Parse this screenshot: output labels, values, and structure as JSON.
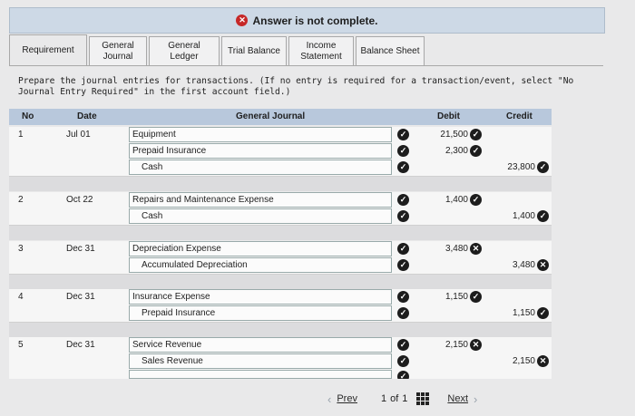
{
  "banner": {
    "text": "Answer is not complete."
  },
  "tabs": [
    {
      "label": "Requirement",
      "active": true
    },
    {
      "label": "General Journal",
      "active": false
    },
    {
      "label": "General Ledger",
      "active": false
    },
    {
      "label": "Trial Balance",
      "active": false
    },
    {
      "label": "Income Statement",
      "active": false
    },
    {
      "label": "Balance Sheet",
      "active": false
    }
  ],
  "instructions": "Prepare the journal entries for transactions. (If no entry is required for a transaction/event, select \"No Journal Entry Required\" in the first account field.)",
  "table": {
    "headers": {
      "no": "No",
      "date": "Date",
      "journal": "General Journal",
      "debit": "Debit",
      "credit": "Credit"
    },
    "entries": [
      {
        "no": "1",
        "date": "Jul 01",
        "lines": [
          {
            "account": "Equipment",
            "debit": "21,500",
            "credit": "",
            "debit_ok": true
          },
          {
            "account": "Prepaid Insurance",
            "debit": "2,300",
            "credit": "",
            "debit_ok": true
          },
          {
            "account": "Cash",
            "debit": "",
            "credit": "23,800",
            "credit_ok": true
          }
        ]
      },
      {
        "no": "2",
        "date": "Oct 22",
        "lines": [
          {
            "account": "Repairs and Maintenance Expense",
            "debit": "1,400",
            "credit": "",
            "debit_ok": true
          },
          {
            "account": "Cash",
            "debit": "",
            "credit": "1,400",
            "credit_ok": true
          }
        ]
      },
      {
        "no": "3",
        "date": "Dec 31",
        "lines": [
          {
            "account": "Depreciation Expense",
            "debit": "3,480",
            "credit": "",
            "debit_ok": false
          },
          {
            "account": "Accumulated Depreciation",
            "debit": "",
            "credit": "3,480",
            "credit_ok": false
          }
        ]
      },
      {
        "no": "4",
        "date": "Dec 31",
        "lines": [
          {
            "account": "Insurance Expense",
            "debit": "1,150",
            "credit": "",
            "debit_ok": true
          },
          {
            "account": "Prepaid Insurance",
            "debit": "",
            "credit": "1,150",
            "credit_ok": true
          }
        ]
      },
      {
        "no": "5",
        "date": "Dec 31",
        "lines": [
          {
            "account": "Service Revenue",
            "debit": "2,150",
            "credit": "",
            "debit_ok": false
          },
          {
            "account": "Sales Revenue",
            "debit": "",
            "credit": "2,150",
            "credit_ok": false
          }
        ]
      }
    ]
  },
  "pager": {
    "prev": "Prev",
    "page": "1",
    "of_label": "of",
    "total": "1",
    "next": "Next"
  }
}
